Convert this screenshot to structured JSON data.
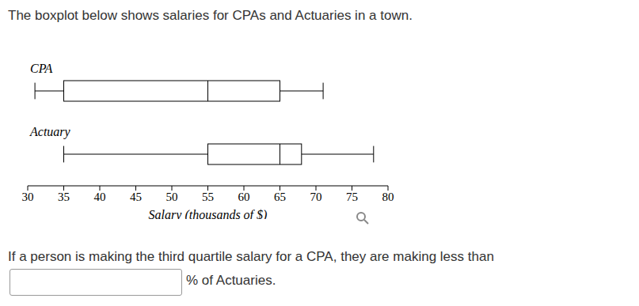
{
  "header": "The boxplot below shows salaries for CPAs and Actuaries in a town.",
  "chart_data": {
    "type": "boxplot",
    "xlabel": "Salary (thousands of $)",
    "xlim": [
      30,
      80
    ],
    "xticks": [
      30,
      35,
      40,
      45,
      50,
      55,
      60,
      65,
      70,
      75,
      80
    ],
    "series": [
      {
        "name": "CPA",
        "min": 31,
        "q1": 35,
        "median": 55,
        "q3": 65,
        "max": 71
      },
      {
        "name": "Actuary",
        "min": 35,
        "q1": 55,
        "median": 65,
        "q3": 68,
        "max": 78
      }
    ]
  },
  "question": {
    "before": "If a person is making the third quartile salary for a CPA, they are making less than",
    "after": "% of Actuaries."
  }
}
